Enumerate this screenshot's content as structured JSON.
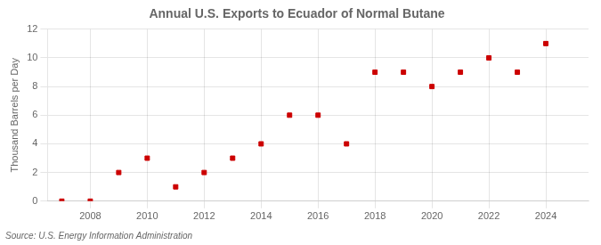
{
  "chart_data": {
    "type": "scatter",
    "title": "Annual U.S. Exports to Ecuador of Normal Butane",
    "ylabel": "Thousand Barrels per Day",
    "source": "Source: U.S. Energy Information Administration",
    "x": [
      2007,
      2008,
      2009,
      2010,
      2011,
      2012,
      2013,
      2014,
      2015,
      2016,
      2017,
      2018,
      2019,
      2020,
      2021,
      2022,
      2023,
      2024
    ],
    "values": [
      0,
      0,
      2,
      3,
      1,
      2,
      3,
      4,
      6,
      6,
      4,
      9,
      9,
      8,
      9,
      10,
      9,
      11
    ],
    "color": "#cc0000",
    "marker": "square",
    "xlim": [
      2006.5,
      2025.5
    ],
    "ylim": [
      0,
      12
    ],
    "xticks": [
      2008,
      2010,
      2012,
      2014,
      2016,
      2018,
      2020,
      2022,
      2024
    ],
    "yticks": [
      0,
      2,
      4,
      6,
      8,
      10,
      12
    ],
    "grid": true
  }
}
